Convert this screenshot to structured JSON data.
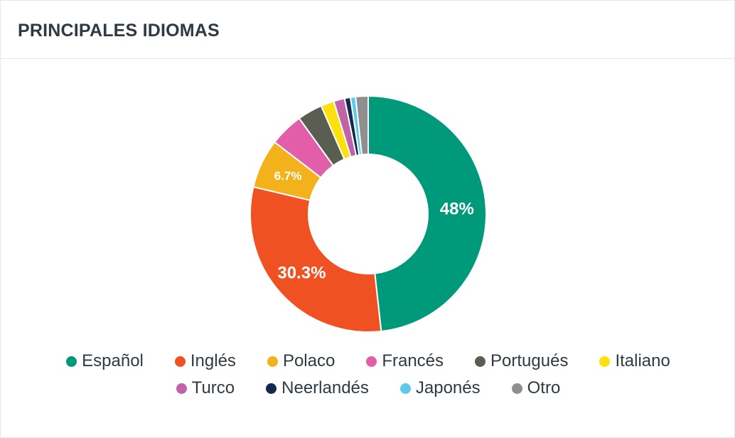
{
  "header": {
    "title": "PRINCIPALES IDIOMAS"
  },
  "chart_data": {
    "type": "pie",
    "donut": true,
    "legend_position": "bottom",
    "categories": [
      "Español",
      "Inglés",
      "Polaco",
      "Francés",
      "Portugués",
      "Italiano",
      "Turco",
      "Neerlandés",
      "Japonés",
      "Otro"
    ],
    "values": [
      48,
      30.3,
      6.7,
      4.6,
      3.4,
      1.8,
      1.5,
      0.8,
      0.7,
      1.7
    ],
    "data_labels": [
      "48%",
      "30.3%",
      "6.7%",
      "",
      "",
      "",
      "",
      "",
      "",
      ""
    ],
    "colors": [
      "#009a7a",
      "#f05122",
      "#f3b21b",
      "#e35ea8",
      "#5a5e51",
      "#fde10c",
      "#c063a9",
      "#15284e",
      "#5ccae8",
      "#8f8f8f"
    ]
  }
}
